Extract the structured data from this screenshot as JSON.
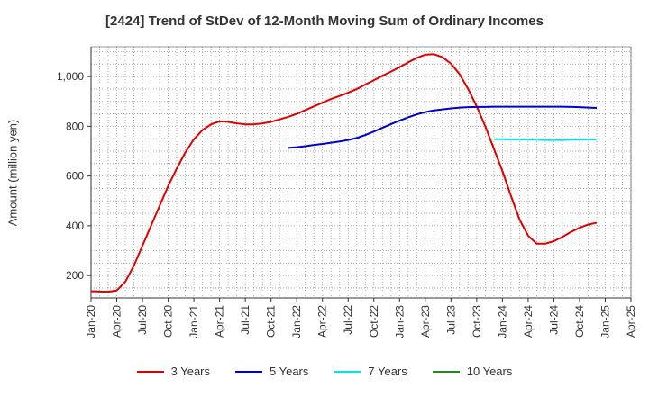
{
  "chart_data": {
    "type": "line",
    "title": "[2424]  Trend of StDev of 12-Month Moving Sum of Ordinary Incomes",
    "ylabel": "Amount (million yen)",
    "xlabel": "",
    "ylim": [
      110,
      1120
    ],
    "yticks": [
      200,
      400,
      600,
      800,
      "1,000"
    ],
    "ytick_values": [
      200,
      400,
      600,
      800,
      1000
    ],
    "x_tick_labels": [
      "Jan-20",
      "Apr-20",
      "Jul-20",
      "Oct-20",
      "Jan-21",
      "Apr-21",
      "Jul-21",
      "Oct-21",
      "Jan-22",
      "Apr-22",
      "Jul-22",
      "Oct-22",
      "Jan-23",
      "Apr-23",
      "Jul-23",
      "Oct-23",
      "Jan-24",
      "Apr-24",
      "Jul-24",
      "Oct-24",
      "Jan-25",
      "Apr-25"
    ],
    "grid": true,
    "legend_position": "bottom",
    "series": [
      {
        "name": "3 Years",
        "color": "#e00000",
        "points": [
          [
            "2020-01",
            137
          ],
          [
            "2020-02",
            136
          ],
          [
            "2020-03",
            135
          ],
          [
            "2020-04",
            140
          ],
          [
            "2020-05",
            175
          ],
          [
            "2020-06",
            240
          ],
          [
            "2020-07",
            320
          ],
          [
            "2020-08",
            400
          ],
          [
            "2020-09",
            480
          ],
          [
            "2020-10",
            560
          ],
          [
            "2020-11",
            630
          ],
          [
            "2020-12",
            695
          ],
          [
            "2021-01",
            748
          ],
          [
            "2021-02",
            785
          ],
          [
            "2021-03",
            808
          ],
          [
            "2021-04",
            820
          ],
          [
            "2021-05",
            818
          ],
          [
            "2021-06",
            812
          ],
          [
            "2021-07",
            808
          ],
          [
            "2021-08",
            808
          ],
          [
            "2021-09",
            812
          ],
          [
            "2021-10",
            818
          ],
          [
            "2021-11",
            828
          ],
          [
            "2021-12",
            838
          ],
          [
            "2022-01",
            850
          ],
          [
            "2022-02",
            865
          ],
          [
            "2022-03",
            880
          ],
          [
            "2022-04",
            895
          ],
          [
            "2022-05",
            910
          ],
          [
            "2022-06",
            922
          ],
          [
            "2022-07",
            935
          ],
          [
            "2022-08",
            950
          ],
          [
            "2022-09",
            968
          ],
          [
            "2022-10",
            985
          ],
          [
            "2022-11",
            1003
          ],
          [
            "2022-12",
            1020
          ],
          [
            "2023-01",
            1038
          ],
          [
            "2023-02",
            1057
          ],
          [
            "2023-03",
            1075
          ],
          [
            "2023-04",
            1088
          ],
          [
            "2023-05",
            1090
          ],
          [
            "2023-06",
            1078
          ],
          [
            "2023-07",
            1052
          ],
          [
            "2023-08",
            1010
          ],
          [
            "2023-09",
            950
          ],
          [
            "2023-10",
            880
          ],
          [
            "2023-11",
            800
          ],
          [
            "2023-12",
            710
          ],
          [
            "2024-01",
            620
          ],
          [
            "2024-02",
            520
          ],
          [
            "2024-03",
            425
          ],
          [
            "2024-04",
            360
          ],
          [
            "2024-05",
            328
          ],
          [
            "2024-06",
            328
          ],
          [
            "2024-07",
            338
          ],
          [
            "2024-08",
            355
          ],
          [
            "2024-09",
            375
          ],
          [
            "2024-10",
            392
          ],
          [
            "2024-11",
            405
          ],
          [
            "2024-12",
            412
          ]
        ]
      },
      {
        "name": "5 Years",
        "color": "#0000cc",
        "points": [
          [
            "2021-12",
            713
          ],
          [
            "2022-01",
            716
          ],
          [
            "2022-02",
            720
          ],
          [
            "2022-03",
            725
          ],
          [
            "2022-04",
            729
          ],
          [
            "2022-05",
            734
          ],
          [
            "2022-06",
            739
          ],
          [
            "2022-07",
            745
          ],
          [
            "2022-08",
            753
          ],
          [
            "2022-09",
            765
          ],
          [
            "2022-10",
            779
          ],
          [
            "2022-11",
            794
          ],
          [
            "2022-12",
            809
          ],
          [
            "2023-01",
            823
          ],
          [
            "2023-02",
            836
          ],
          [
            "2023-03",
            848
          ],
          [
            "2023-04",
            857
          ],
          [
            "2023-05",
            864
          ],
          [
            "2023-06",
            868
          ],
          [
            "2023-07",
            872
          ],
          [
            "2023-08",
            875
          ],
          [
            "2023-09",
            877
          ],
          [
            "2023-10",
            878
          ],
          [
            "2023-11",
            878
          ],
          [
            "2023-12",
            879
          ],
          [
            "2024-01",
            879
          ],
          [
            "2024-02",
            879
          ],
          [
            "2024-03",
            879
          ],
          [
            "2024-04",
            879
          ],
          [
            "2024-05",
            879
          ],
          [
            "2024-06",
            879
          ],
          [
            "2024-07",
            879
          ],
          [
            "2024-08",
            879
          ],
          [
            "2024-09",
            878
          ],
          [
            "2024-10",
            877
          ],
          [
            "2024-11",
            875
          ],
          [
            "2024-12",
            874
          ]
        ]
      },
      {
        "name": "7 Years",
        "color": "#00e5e5",
        "points": [
          [
            "2023-12",
            748
          ],
          [
            "2024-01",
            748
          ],
          [
            "2024-02",
            747
          ],
          [
            "2024-03",
            747
          ],
          [
            "2024-04",
            746
          ],
          [
            "2024-05",
            746
          ],
          [
            "2024-06",
            745
          ],
          [
            "2024-07",
            745
          ],
          [
            "2024-08",
            745
          ],
          [
            "2024-09",
            746
          ],
          [
            "2024-10",
            746
          ],
          [
            "2024-11",
            747
          ],
          [
            "2024-12",
            747
          ]
        ]
      },
      {
        "name": "10 Years",
        "color": "#228b22",
        "points": []
      }
    ]
  }
}
